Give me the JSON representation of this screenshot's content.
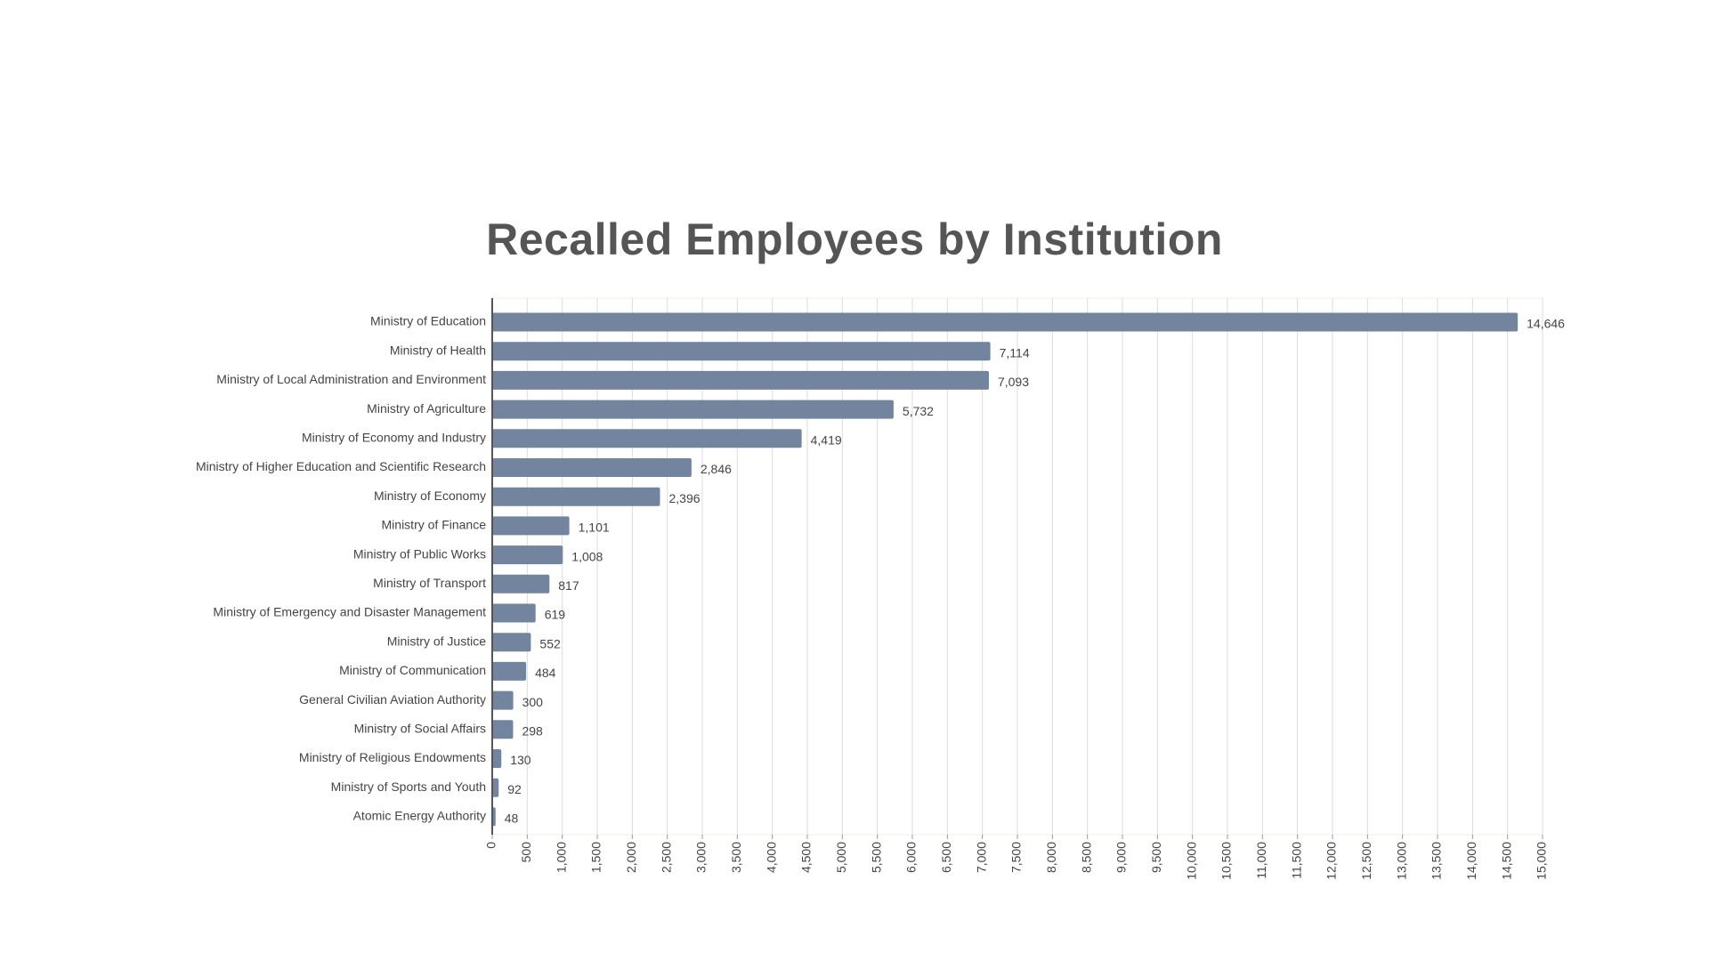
{
  "chart_data": {
    "type": "bar",
    "orientation": "horizontal",
    "title": "Recalled Employees by Institution",
    "xlabel": "",
    "ylabel": "",
    "xlim": [
      0,
      15000
    ],
    "x_tick_step": 500,
    "grid": "vertical",
    "legend": "none",
    "bar_color": "#73849f",
    "categories": [
      "Ministry of Education",
      "Ministry of Health",
      "Ministry of Local Administration and Environment",
      "Ministry of Agriculture",
      "Ministry of Economy and Industry",
      "Ministry of Higher Education and Scientific Research",
      "Ministry of Economy",
      "Ministry of Finance",
      "Ministry of Public Works",
      "Ministry of Transport",
      "Ministry of Emergency and Disaster Management",
      "Ministry of Justice",
      "Ministry of Communication",
      "General Civilian Aviation Authority",
      "Ministry of Social Affairs",
      "Ministry of Religious Endowments",
      "Ministry of Sports and Youth",
      "Atomic Energy Authority"
    ],
    "values": [
      14646,
      7114,
      7093,
      5732,
      4419,
      2846,
      2396,
      1101,
      1008,
      817,
      619,
      552,
      484,
      300,
      298,
      130,
      92,
      48
    ],
    "value_labels": [
      "14,646",
      "7,114",
      "7,093",
      "5,732",
      "4,419",
      "2,846",
      "2,396",
      "1,101",
      "1,008",
      "817",
      "619",
      "552",
      "484",
      "300",
      "298",
      "130",
      "92",
      "48"
    ]
  }
}
